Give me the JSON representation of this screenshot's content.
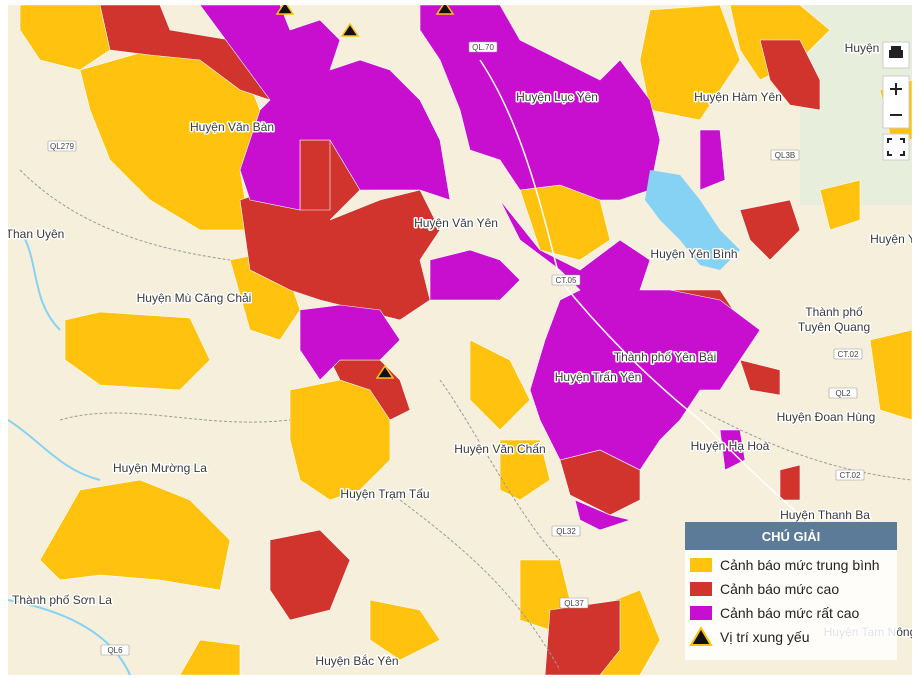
{
  "map": {
    "places": [
      "Huyện Văn Bàn",
      "Huyện Lục Yên",
      "Huyện Hàm Yên",
      "Huyện",
      "Than Uyên",
      "Huyện Văn Yên",
      "Huyện Yên Bình",
      "Huyện Y",
      "Huyện Mù Căng Chải",
      "Thành phố",
      "Tuyên Quang",
      "Thành phố Yên Bái",
      "Huyện Trấn Yên",
      "Huyện Đoan Hùng",
      "Huyện Hạ Hoà",
      "Huyện Văn Chấn",
      "Huyện Mường La",
      "Huyện Trạm Tấu",
      "Huyện Thanh Ba",
      "Thành phố Sơn La",
      "Huyện Bắc Yên",
      "Huyện Tam Nông"
    ],
    "roads": [
      "QL279",
      "QL.70",
      "QL3B",
      "CT.05",
      "CT.02",
      "QL2",
      "CT.02",
      "QL32",
      "QL37",
      "QL6"
    ]
  },
  "legend": {
    "title": "CHÚ GIẢI",
    "items": [
      {
        "label": "Cảnh báo mức trung bình",
        "color": "#ffc20e"
      },
      {
        "label": "Cảnh báo mức cao",
        "color": "#d0342c"
      },
      {
        "label": "Cảnh báo mức rất cao",
        "color": "#c80fd0"
      },
      {
        "label": "Vị trí xung yếu"
      }
    ]
  }
}
